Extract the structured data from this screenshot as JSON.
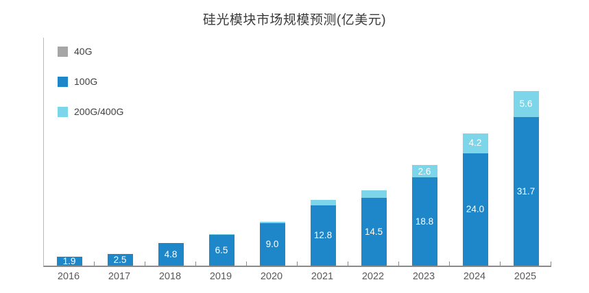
{
  "title": "硅光模块市场规模预测(亿美元)",
  "colors": {
    "background": "#ffffff",
    "axis_line": "#8a8a8a",
    "y_axis_line": "#b9b9b9",
    "axis_label_text": "#595959",
    "bar_label_text": "#ffffff",
    "title_text": "#3b3b3b"
  },
  "legend": {
    "position": "top-left-inside",
    "items": [
      {
        "label": "40G"
      },
      {
        "label": "100G"
      },
      {
        "label": "200G/400G"
      }
    ]
  },
  "chart_data": {
    "type": "bar",
    "stacked": true,
    "title": "硅光模块市场规模预测(亿美元)",
    "xlabel": "",
    "ylabel": "",
    "ylim": [
      0,
      48
    ],
    "grid": false,
    "legend_position": "top-left inside plot",
    "categories": [
      "2016",
      "2017",
      "2018",
      "2019",
      "2020",
      "2021",
      "2022",
      "2023",
      "2024",
      "2025"
    ],
    "series": [
      {
        "name": "40G",
        "color": "#a6a6a6",
        "values": [
          0,
          0,
          0,
          0,
          0,
          0,
          0,
          0,
          0,
          0
        ],
        "labels": [
          "",
          "",
          "",
          "",
          "",
          "",
          "",
          "",
          "",
          ""
        ]
      },
      {
        "name": "100G",
        "color": "#1d87c9",
        "values": [
          1.9,
          2.5,
          4.8,
          6.5,
          9.0,
          12.8,
          14.5,
          18.8,
          24.0,
          31.7
        ],
        "labels": [
          "1.9",
          "2.5",
          "4.8",
          "6.5",
          "9.0",
          "12.8",
          "14.5",
          "18.8",
          "24.0",
          "31.7"
        ]
      },
      {
        "name": "200G/400G",
        "color": "#7cd5e8",
        "values": [
          0,
          0,
          0,
          0.2,
          0.3,
          1.2,
          1.6,
          2.6,
          4.2,
          5.6
        ],
        "labels": [
          "",
          "",
          "",
          "",
          "",
          "",
          "",
          "2.6",
          "4.2",
          "5.6"
        ]
      }
    ]
  }
}
